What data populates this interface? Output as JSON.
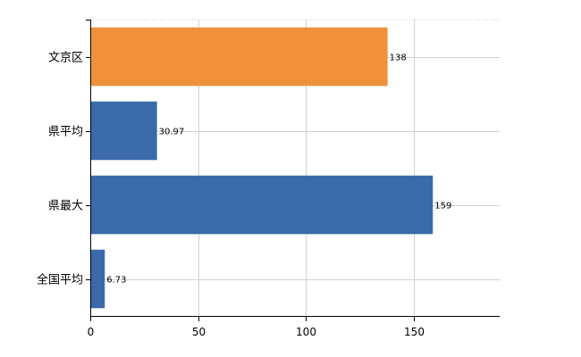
{
  "chart_data": {
    "type": "bar",
    "orientation": "horizontal",
    "categories": [
      "文京区",
      "県平均",
      "県最大",
      "全国平均"
    ],
    "values": [
      138,
      30.97,
      159,
      6.73
    ],
    "value_labels": [
      "138",
      "30.97",
      "159",
      "6.73"
    ],
    "colors": [
      "#F0913A",
      "#3A6AAA",
      "#3A6AAA",
      "#3A6AAA"
    ],
    "highlight_color": "#F0913A",
    "base_color": "#3A6AAA",
    "xlim": [
      0,
      190
    ],
    "x_ticks": [
      0,
      50,
      100,
      150
    ],
    "x_tick_labels": [
      "0",
      "50",
      "100",
      "150"
    ],
    "grid": true,
    "legend": "none",
    "title": "",
    "xlabel": "",
    "ylabel": ""
  }
}
